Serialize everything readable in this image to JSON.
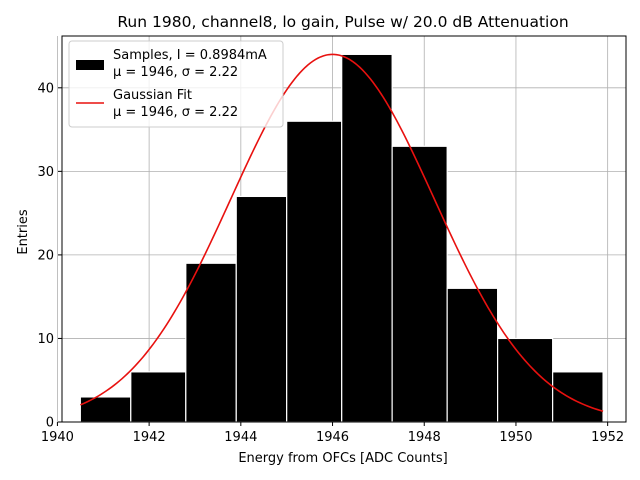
{
  "chart_data": {
    "type": "bar",
    "title": "Run 1980, channel8, lo gain, Pulse w/ 20.0 dB Attenuation",
    "xlabel": "Energy from OFCs [ADC Counts]",
    "ylabel": "Entries",
    "xlim": [
      1940.1,
      1952.4
    ],
    "ylim": [
      0,
      46.2
    ],
    "xticks": [
      1940,
      1942,
      1944,
      1946,
      1948,
      1950,
      1952
    ],
    "xtick_labels": [
      "1940",
      "1942",
      "1944",
      "1946",
      "1948",
      "1950",
      "1952"
    ],
    "yticks": [
      0,
      10,
      20,
      30,
      40
    ],
    "ytick_labels": [
      "0",
      "10",
      "20",
      "30",
      "40"
    ],
    "grid": true,
    "legend_position": "top-left",
    "bins": [
      {
        "left": 1940.5,
        "right": 1941.6,
        "count": 3
      },
      {
        "left": 1941.6,
        "right": 1942.8,
        "count": 6
      },
      {
        "left": 1942.8,
        "right": 1943.9,
        "count": 19
      },
      {
        "left": 1943.9,
        "right": 1945.0,
        "count": 27
      },
      {
        "left": 1945.0,
        "right": 1946.2,
        "count": 36
      },
      {
        "left": 1946.2,
        "right": 1947.3,
        "count": 44
      },
      {
        "left": 1947.3,
        "right": 1948.5,
        "count": 33
      },
      {
        "left": 1948.5,
        "right": 1949.6,
        "count": 16
      },
      {
        "left": 1949.6,
        "right": 1950.8,
        "count": 10
      },
      {
        "left": 1950.8,
        "right": 1951.9,
        "count": 6
      }
    ],
    "series": [
      {
        "name": "Samples",
        "kind": "histogram",
        "color": "#000000",
        "legend_lines": [
          "Samples, I = 0.8984mA",
          "μ = 1946, σ = 2.22"
        ]
      },
      {
        "name": "Gaussian Fit",
        "kind": "line",
        "color": "#e8110f",
        "amplitude": 44,
        "mu": 1946.0,
        "sigma": 2.22,
        "x_range": [
          1940.5,
          1951.9
        ],
        "legend_lines": [
          "Gaussian Fit",
          "μ = 1946, σ = 2.22"
        ]
      }
    ]
  }
}
